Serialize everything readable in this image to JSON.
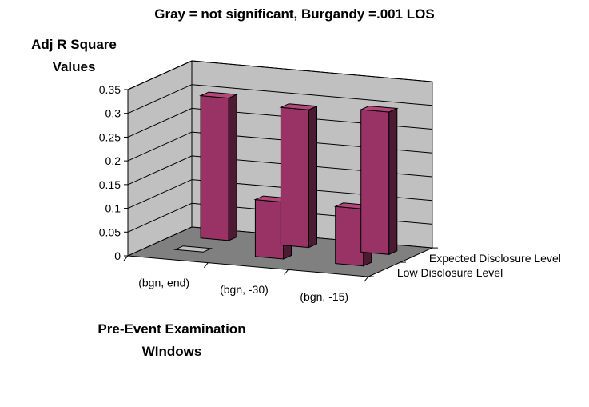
{
  "chart_data": {
    "type": "bar",
    "title": "Gray = not significant, Burgandy =.001 LOS",
    "ylabel": [
      "Adj R Square",
      "Values"
    ],
    "xlabel": [
      "Pre-Event Examination",
      "WIndows"
    ],
    "categories": [
      "(bgn, end)",
      "(bgn, -30)",
      "(bgn, -15)"
    ],
    "series": [
      {
        "name": "Low Disclosure Level",
        "values": [
          0.3,
          0.29,
          0.3
        ]
      },
      {
        "name": "Expected Disclosure Level",
        "values": [
          0.0,
          0.12,
          0.12
        ]
      }
    ],
    "significance": [
      [
        "burgundy",
        "gray"
      ],
      [
        "burgundy",
        "burgundy"
      ],
      [
        "burgundy",
        "burgundy"
      ]
    ],
    "yticks": [
      "0",
      "0.05",
      "0.1",
      "0.15",
      "0.2",
      "0.25",
      "0.3",
      "0.35"
    ],
    "ylim": [
      0,
      0.35
    ],
    "grid": true,
    "legend": "depth-axis-right",
    "colors": {
      "burgundy": "#993366",
      "gray": "#c0c0c0",
      "wall": "#c0c0c0",
      "floor": "#808080"
    }
  }
}
